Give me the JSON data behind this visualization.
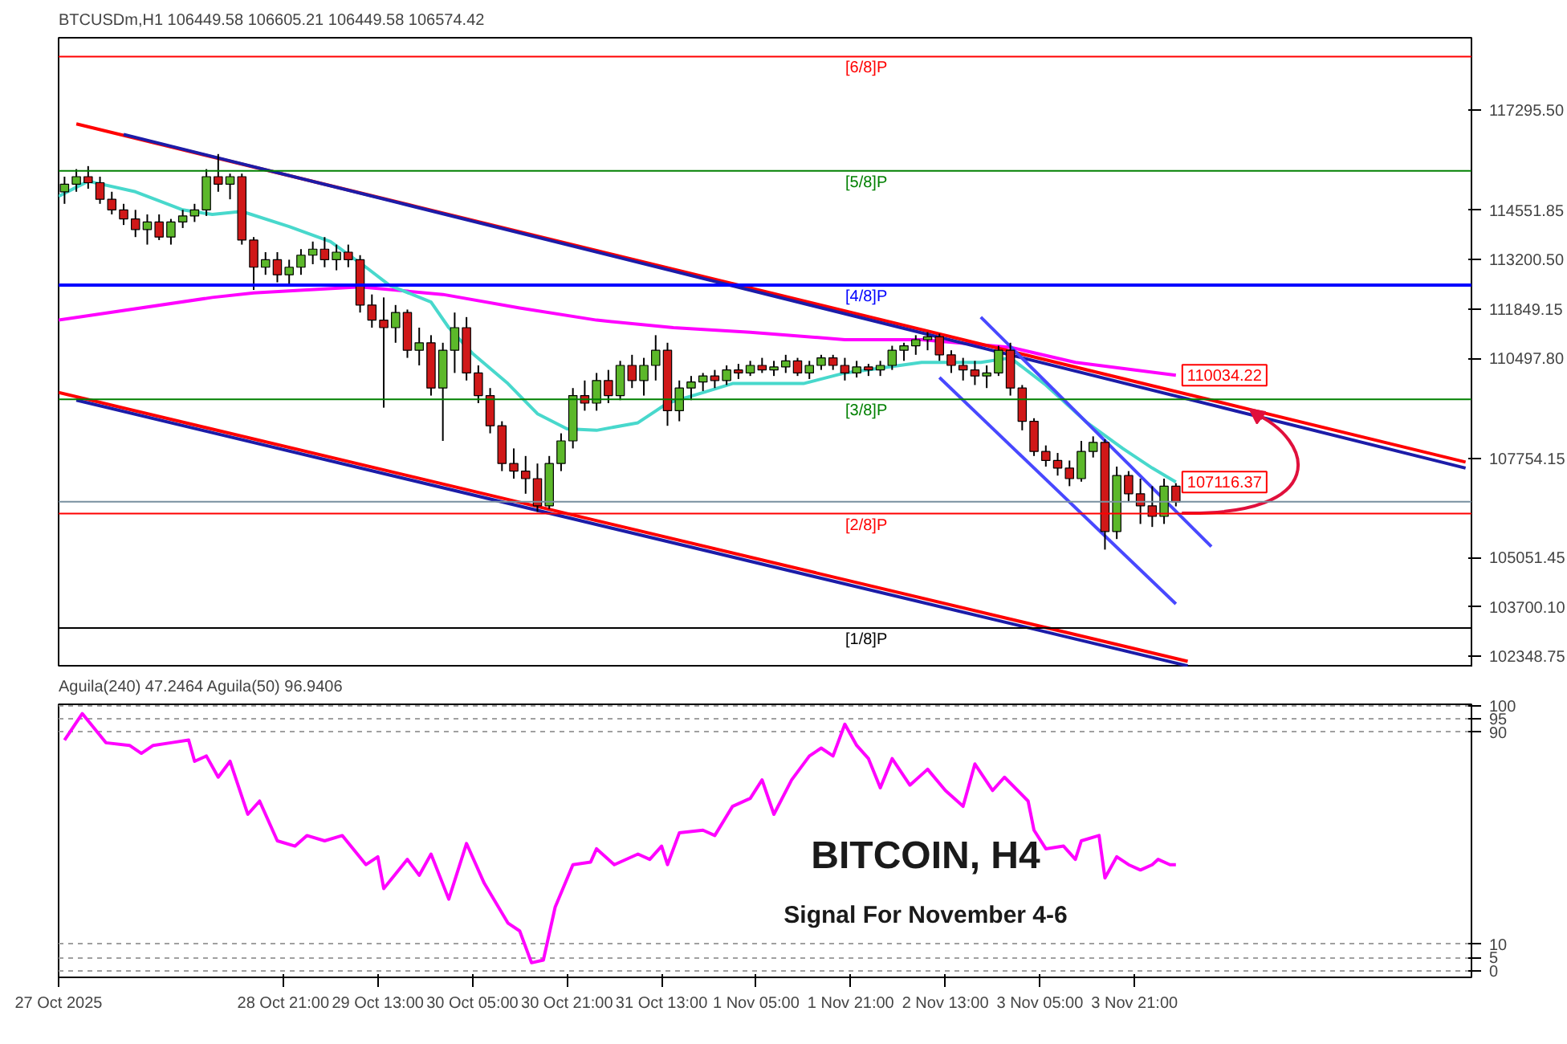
{
  "chart_data": [
    {
      "type": "candlestick",
      "title": "BTCUSDm,H1  106449.58 106605.21 106449.58 106574.42",
      "x": [
        "2025-10-27T08:00",
        "2025-10-27T10:00",
        "2025-10-27T12:00",
        "2025-10-27T14:00",
        "2025-10-27T16:00",
        "2025-10-27T18:00",
        "2025-10-27T20:00",
        "2025-10-27T22:00",
        "2025-10-28T00:00",
        "2025-10-28T02:00",
        "2025-10-28T04:00",
        "2025-10-28T06:00",
        "2025-10-28T08:00",
        "2025-10-28T10:00",
        "2025-10-28T12:00",
        "2025-10-28T14:00",
        "2025-10-28T16:00",
        "2025-10-28T18:00",
        "2025-10-28T20:00",
        "2025-10-28T22:00",
        "2025-10-29T00:00",
        "2025-10-29T02:00",
        "2025-10-29T04:00",
        "2025-10-29T06:00",
        "2025-10-29T08:00",
        "2025-10-29T10:00",
        "2025-10-29T12:00",
        "2025-10-29T14:00",
        "2025-10-29T16:00",
        "2025-10-29T18:00",
        "2025-10-29T20:00",
        "2025-10-29T22:00",
        "2025-10-30T00:00",
        "2025-10-30T02:00",
        "2025-10-30T04:00",
        "2025-10-30T06:00",
        "2025-10-30T08:00",
        "2025-10-30T10:00",
        "2025-10-30T12:00",
        "2025-10-30T14:00",
        "2025-10-30T16:00",
        "2025-10-30T18:00",
        "2025-10-30T20:00",
        "2025-10-30T22:00",
        "2025-10-31T00:00",
        "2025-10-31T02:00",
        "2025-10-31T04:00",
        "2025-10-31T06:00",
        "2025-10-31T08:00",
        "2025-10-31T10:00",
        "2025-10-31T12:00",
        "2025-10-31T14:00",
        "2025-10-31T16:00",
        "2025-10-31T18:00",
        "2025-10-31T20:00",
        "2025-10-31T22:00",
        "2025-11-01T00:00",
        "2025-11-01T02:00",
        "2025-11-01T04:00",
        "2025-11-01T06:00",
        "2025-11-01T08:00",
        "2025-11-01T10:00",
        "2025-11-01T12:00",
        "2025-11-01T14:00",
        "2025-11-01T16:00",
        "2025-11-01T18:00",
        "2025-11-01T20:00",
        "2025-11-01T22:00",
        "2025-11-02T00:00",
        "2025-11-02T02:00",
        "2025-11-02T04:00",
        "2025-11-02T06:00",
        "2025-11-02T08:00",
        "2025-11-02T10:00",
        "2025-11-02T12:00",
        "2025-11-02T14:00",
        "2025-11-02T16:00",
        "2025-11-02T18:00",
        "2025-11-02T20:00",
        "2025-11-02T22:00",
        "2025-11-03T00:00",
        "2025-11-03T02:00",
        "2025-11-03T04:00",
        "2025-11-03T06:00",
        "2025-11-03T08:00",
        "2025-11-03T10:00",
        "2025-11-03T12:00",
        "2025-11-03T14:00",
        "2025-11-03T16:00",
        "2025-11-03T18:00",
        "2025-11-03T20:00",
        "2025-11-03T22:00",
        "2025-11-04T00:00",
        "2025-11-04T02:00",
        "2025-11-04T04:00"
      ],
      "ohlc": [
        [
          115053,
          115466,
          114723,
          115260
        ],
        [
          115260,
          115672,
          115053,
          115466
        ],
        [
          115466,
          115755,
          115136,
          115301
        ],
        [
          115301,
          115466,
          114723,
          114847
        ],
        [
          114847,
          115053,
          114434,
          114558
        ],
        [
          114558,
          114723,
          114145,
          114310
        ],
        [
          114310,
          114558,
          113814,
          114021
        ],
        [
          114021,
          114434,
          113608,
          114227
        ],
        [
          114227,
          114434,
          113732,
          113814
        ],
        [
          113814,
          114310,
          113608,
          114227
        ],
        [
          114227,
          114558,
          114062,
          114392
        ],
        [
          114392,
          114723,
          114227,
          114558
        ],
        [
          114558,
          115672,
          114392,
          115466
        ],
        [
          115466,
          116085,
          115053,
          115260
        ],
        [
          115260,
          115549,
          114847,
          115466
        ],
        [
          115466,
          115549,
          113608,
          113732
        ],
        [
          113732,
          113814,
          112369,
          112989
        ],
        [
          112989,
          113401,
          112782,
          113195
        ],
        [
          113195,
          113401,
          112576,
          112782
        ],
        [
          112782,
          113195,
          112493,
          112989
        ],
        [
          112989,
          113484,
          112782,
          113319
        ],
        [
          113319,
          113691,
          113071,
          113484
        ],
        [
          113484,
          113814,
          112989,
          113195
        ],
        [
          113195,
          113608,
          112906,
          113401
        ],
        [
          113401,
          113608,
          112989,
          113195
        ],
        [
          113195,
          113319,
          111750,
          111956
        ],
        [
          111956,
          112245,
          111337,
          111543
        ],
        [
          111543,
          112163,
          109149,
          111337
        ],
        [
          111337,
          111956,
          110924,
          111750
        ],
        [
          111750,
          111832,
          110511,
          110718
        ],
        [
          110718,
          111337,
          110305,
          110924
        ],
        [
          110924,
          111131,
          109479,
          109685
        ],
        [
          109685,
          110924,
          108240,
          110718
        ],
        [
          110718,
          111750,
          110098,
          111337
        ],
        [
          111337,
          111626,
          109892,
          110098
        ],
        [
          110098,
          110305,
          109272,
          109479
        ],
        [
          109479,
          109685,
          108447,
          108653
        ],
        [
          108653,
          108777,
          107414,
          107621
        ],
        [
          107621,
          108034,
          107208,
          107414
        ],
        [
          107414,
          107827,
          106795,
          107208
        ],
        [
          107208,
          107621,
          106300,
          106465
        ],
        [
          106465,
          107827,
          106382,
          107621
        ],
        [
          107621,
          108447,
          107414,
          108240
        ],
        [
          108240,
          109685,
          108034,
          109479
        ],
        [
          109479,
          109892,
          109066,
          109272
        ],
        [
          109272,
          110098,
          109066,
          109892
        ],
        [
          109892,
          110181,
          109272,
          109479
        ],
        [
          109479,
          110429,
          109355,
          110305
        ],
        [
          110305,
          110594,
          109685,
          109892
        ],
        [
          109892,
          110511,
          109479,
          110305
        ],
        [
          110305,
          111131,
          109892,
          110718
        ],
        [
          110718,
          110924,
          108653,
          109066
        ],
        [
          109066,
          109892,
          108777,
          109685
        ],
        [
          109685,
          110016,
          109355,
          109851
        ],
        [
          109851,
          110098,
          109603,
          110016
        ],
        [
          110016,
          110181,
          109685,
          109892
        ],
        [
          109892,
          110305,
          109768,
          110181
        ],
        [
          110181,
          110346,
          109933,
          110098
        ],
        [
          110098,
          110429,
          110016,
          110305
        ],
        [
          110305,
          110511,
          110098,
          110181
        ],
        [
          110181,
          110429,
          110016,
          110263
        ],
        [
          110263,
          110594,
          110098,
          110429
        ],
        [
          110429,
          110511,
          110016,
          110098
        ],
        [
          110098,
          110429,
          109933,
          110305
        ],
        [
          110305,
          110594,
          110181,
          110511
        ],
        [
          110511,
          110594,
          110181,
          110305
        ],
        [
          110305,
          110511,
          109892,
          110098
        ],
        [
          110098,
          110429,
          109974,
          110263
        ],
        [
          110263,
          110346,
          110016,
          110181
        ],
        [
          110181,
          110429,
          110016,
          110305
        ],
        [
          110305,
          110842,
          110181,
          110718
        ],
        [
          110718,
          110924,
          110429,
          110842
        ],
        [
          110842,
          111131,
          110594,
          111007
        ],
        [
          111007,
          111213,
          110718,
          111089
        ],
        [
          111089,
          111172,
          110429,
          110594
        ],
        [
          110594,
          110718,
          110098,
          110305
        ],
        [
          110305,
          110511,
          109892,
          110181
        ],
        [
          110181,
          110429,
          109768,
          110016
        ],
        [
          110016,
          110305,
          109685,
          110098
        ],
        [
          110098,
          110842,
          110016,
          110718
        ],
        [
          110718,
          110924,
          109479,
          109685
        ],
        [
          109685,
          109768,
          108529,
          108777
        ],
        [
          108777,
          108860,
          107827,
          107951
        ],
        [
          107951,
          108116,
          107538,
          107703
        ],
        [
          107703,
          107910,
          107291,
          107497
        ],
        [
          107497,
          107703,
          107002,
          107208
        ],
        [
          107208,
          108240,
          107125,
          107951
        ],
        [
          107951,
          108364,
          107786,
          108199
        ],
        [
          108199,
          108282,
          105267,
          105763
        ],
        [
          105763,
          107538,
          105556,
          107291
        ],
        [
          107291,
          107414,
          106589,
          106795
        ],
        [
          106795,
          107208,
          105969,
          106465
        ],
        [
          106465,
          107002,
          105887,
          106176
        ],
        [
          106176,
          107208,
          105969,
          107002
        ],
        [
          107002,
          107084,
          106449.58,
          106574.42
        ]
      ],
      "series": [
        {
          "type": "line",
          "color": "#ff00ff",
          "x": [
            "2025-10-27T07:00",
            "2025-10-28T09:00",
            "2025-10-28T16:00",
            "2025-10-29T10:00",
            "2025-10-30T00:00",
            "2025-10-30T13:00",
            "2025-10-31T02:00",
            "2025-10-31T15:00",
            "2025-11-01T04:00",
            "2025-11-01T20:00",
            "2025-11-02T09:00",
            "2025-11-03T00:00",
            "2025-11-03T11:00",
            "2025-11-04T04:00"
          ],
          "values": [
            111544,
            112163,
            112287,
            112452,
            112245,
            111874,
            111543,
            111337,
            111213,
            111007,
            111007,
            110800,
            110387,
            110034.22
          ]
        },
        {
          "type": "line",
          "color": "#48d8cc",
          "x": [
            "2025-10-27T07:00",
            "2025-10-27T12:00",
            "2025-10-27T20:00",
            "2025-10-28T04:00",
            "2025-10-28T09:00",
            "2025-10-28T14:00",
            "2025-10-28T22:00",
            "2025-10-29T05:00",
            "2025-10-29T11:00",
            "2025-10-29T15:00",
            "2025-10-29T22:00",
            "2025-10-30T01:00",
            "2025-10-30T05:00",
            "2025-10-30T11:00",
            "2025-10-30T16:00",
            "2025-10-30T21:00",
            "2025-10-31T02:00",
            "2025-10-31T09:00",
            "2025-10-31T14:00",
            "2025-10-31T20:00",
            "2025-11-01T01:00",
            "2025-11-01T13:00",
            "2025-11-01T20:00",
            "2025-11-02T09:00",
            "2025-11-02T19:00",
            "2025-11-03T00:00",
            "2025-11-03T06:00",
            "2025-11-03T13:00",
            "2025-11-03T19:00",
            "2025-11-04T00:00",
            "2025-11-04T04:00"
          ],
          "values": [
            114929,
            115342,
            115053,
            114558,
            114434,
            114516,
            114103,
            113691,
            112989,
            112493,
            112039,
            111337,
            110635,
            109809,
            108983,
            108570,
            108529,
            108736,
            109272,
            109562,
            109809,
            109809,
            110098,
            110387,
            110387,
            110511,
            109768,
            108736,
            108034,
            107497,
            107116.37
          ]
        },
        {
          "type": "line",
          "color": "#ff0000",
          "x": [
            "2025-10-27T10:00",
            "2025-11-06T05:00"
          ],
          "values": [
            116911,
            107662
          ]
        },
        {
          "type": "line",
          "color": "#1c1ca8",
          "x": [
            "2025-10-27T18:00",
            "2025-11-06T05:00"
          ],
          "values": [
            116622,
            107497
          ]
        },
        {
          "type": "line",
          "color": "#ff0000",
          "x": [
            "2025-10-27T07:00",
            "2025-11-04T06:00"
          ],
          "values": [
            109562,
            102212
          ]
        },
        {
          "type": "line",
          "color": "#1c1ca8",
          "x": [
            "2025-10-27T10:00",
            "2025-11-04T06:00"
          ],
          "values": [
            109355,
            102088
          ]
        },
        {
          "type": "line",
          "color": "#4848ff",
          "x": [
            "2025-11-02T19:00",
            "2025-11-04T10:00"
          ],
          "values": [
            111626,
            105350
          ]
        },
        {
          "type": "line",
          "color": "#4848ff",
          "x": [
            "2025-11-02T12:00",
            "2025-11-04T04:00"
          ],
          "values": [
            109974,
            103781
          ]
        }
      ],
      "ref_lines": [
        {
          "axis": "y",
          "value": 118750,
          "label": "[6/8]P",
          "color": "#ff0000"
        },
        {
          "axis": "y",
          "value": 115625,
          "label": "[5/8]P",
          "color": "#008000"
        },
        {
          "axis": "y",
          "value": 112500,
          "label": "[4/8]P",
          "color": "#0000ff"
        },
        {
          "axis": "y",
          "value": 109375,
          "label": "[3/8]P",
          "color": "#008000"
        },
        {
          "axis": "y",
          "value": 106574.42,
          "label": null,
          "color": "#7890a0"
        },
        {
          "axis": "y",
          "value": 106250,
          "label": "[2/8]P",
          "color": "#ff0000"
        },
        {
          "axis": "y",
          "value": 103125,
          "label": "[1/8]P",
          "color": "#000000"
        }
      ],
      "annotations": [
        {
          "text": "110034.22",
          "x": "2025-11-04T04:00",
          "y": 110034.22
        },
        {
          "text": "107116.37",
          "x": "2025-11-04T04:00",
          "y": 107116.37
        }
      ],
      "xlim": [
        "2025-10-27T07:00",
        "2025-11-06T06:00"
      ],
      "ylim": [
        102047,
        119265
      ],
      "yticks": [
        {
          "value": 117295.5,
          "label": "117295.50"
        },
        {
          "value": 114551.85,
          "label": "114551.85"
        },
        {
          "value": 113200.5,
          "label": "113200.50"
        },
        {
          "value": 111849.15,
          "label": "111849.15"
        },
        {
          "value": 110497.8,
          "label": "110497.80"
        },
        {
          "value": 107754.15,
          "label": "107754.15"
        },
        {
          "value": 105051.45,
          "label": "105051.45"
        },
        {
          "value": 103700.1,
          "label": "103700.10"
        },
        {
          "value": 102348.75,
          "label": "102348.75"
        }
      ],
      "tick_labels": "y"
    },
    {
      "type": "line",
      "title": "Aguila(240) 47.2464  Aguila(50) 96.9406",
      "annotations": [
        "BITCOIN, H4",
        "Signal For November 4-6"
      ],
      "series": [
        {
          "color": "#ff00ff",
          "x": [
            "2025-10-27T08:00",
            "2025-10-27T11:00",
            "2025-10-27T15:00",
            "2025-10-27T19:00",
            "2025-10-27T21:00",
            "2025-10-27T23:00",
            "2025-10-28T02:00",
            "2025-10-28T05:00",
            "2025-10-28T06:00",
            "2025-10-28T08:00",
            "2025-10-28T10:00",
            "2025-10-28T12:00",
            "2025-10-28T15:00",
            "2025-10-28T17:00",
            "2025-10-28T20:00",
            "2025-10-28T23:00",
            "2025-10-29T01:00",
            "2025-10-29T04:00",
            "2025-10-29T07:00",
            "2025-10-29T11:00",
            "2025-10-29T13:00",
            "2025-10-29T14:00",
            "2025-10-29T18:00",
            "2025-10-29T20:00",
            "2025-10-29T22:00",
            "2025-10-30T01:00",
            "2025-10-30T04:00",
            "2025-10-30T07:00",
            "2025-10-30T11:00",
            "2025-10-30T13:00",
            "2025-10-30T15:00",
            "2025-10-30T17:00",
            "2025-10-30T19:00",
            "2025-10-30T22:00",
            "2025-10-31T01:00",
            "2025-10-31T02:00",
            "2025-10-31T05:00",
            "2025-10-31T09:00",
            "2025-10-31T11:00",
            "2025-10-31T13:00",
            "2025-10-31T14:00",
            "2025-10-31T16:00",
            "2025-10-31T20:00",
            "2025-10-31T22:00",
            "2025-11-01T01:00",
            "2025-11-01T04:00",
            "2025-11-01T06:00",
            "2025-11-01T08:00",
            "2025-11-01T11:00",
            "2025-11-01T14:00",
            "2025-11-01T16:00",
            "2025-11-01T18:00",
            "2025-11-01T20:00",
            "2025-11-01T22:00",
            "2025-11-02T00:00",
            "2025-11-02T02:00",
            "2025-11-02T04:00",
            "2025-11-02T07:00",
            "2025-11-02T10:00",
            "2025-11-02T13:00",
            "2025-11-02T16:00",
            "2025-11-02T18:00",
            "2025-11-02T21:00",
            "2025-11-02T23:00",
            "2025-11-03T03:00",
            "2025-11-03T04:00",
            "2025-11-03T06:00",
            "2025-11-03T09:00",
            "2025-11-03T11:00",
            "2025-11-03T12:00",
            "2025-11-03T15:00",
            "2025-11-03T16:00",
            "2025-11-03T18:00",
            "2025-11-03T20:00",
            "2025-11-03T22:00",
            "2025-11-04T00:00",
            "2025-11-04T01:00",
            "2025-11-04T03:00",
            "2025-11-04T04:00"
          ],
          "values": [
            87,
            97,
            86,
            85,
            82,
            85,
            86,
            87,
            79,
            81,
            73,
            79,
            59,
            64,
            49,
            47,
            51,
            49,
            51,
            40,
            43,
            31,
            42,
            36,
            44,
            27,
            48,
            33,
            18,
            15,
            3,
            4,
            24,
            40,
            41,
            46,
            40,
            44,
            42,
            47,
            40,
            52,
            53,
            51,
            62,
            65,
            72,
            59,
            72,
            81,
            84,
            81,
            93,
            85,
            80,
            69,
            80,
            70,
            76,
            68,
            62,
            78,
            68,
            73,
            64,
            53,
            46,
            47,
            42,
            49,
            51,
            35,
            43,
            40,
            38,
            40,
            42,
            40,
            40
          ]
        }
      ],
      "xlim": [
        "2025-10-27T07:00",
        "2025-11-06T06:00"
      ],
      "ylim": [
        -2.5,
        100.5
      ],
      "xticks": [
        {
          "value": "2025-10-27T07:00",
          "label": "27 Oct 2025"
        },
        {
          "value": "2025-10-28T21:00",
          "label": "28 Oct 21:00"
        },
        {
          "value": "2025-10-29T13:00",
          "label": "29 Oct 13:00"
        },
        {
          "value": "2025-10-30T05:00",
          "label": "30 Oct 05:00"
        },
        {
          "value": "2025-10-30T21:00",
          "label": "30 Oct 21:00"
        },
        {
          "value": "2025-10-31T13:00",
          "label": "31 Oct 13:00"
        },
        {
          "value": "2025-11-01T05:00",
          "label": "1 Nov 05:00"
        },
        {
          "value": "2025-11-01T21:00",
          "label": "1 Nov 21:00"
        },
        {
          "value": "2025-11-02T13:00",
          "label": "2 Nov 13:00"
        },
        {
          "value": "2025-11-03T05:00",
          "label": "3 Nov 05:00"
        },
        {
          "value": "2025-11-03T21:00",
          "label": "3 Nov 21:00"
        }
      ],
      "yticks": [
        0,
        5,
        10,
        90,
        95,
        100
      ],
      "grid": "y"
    }
  ]
}
